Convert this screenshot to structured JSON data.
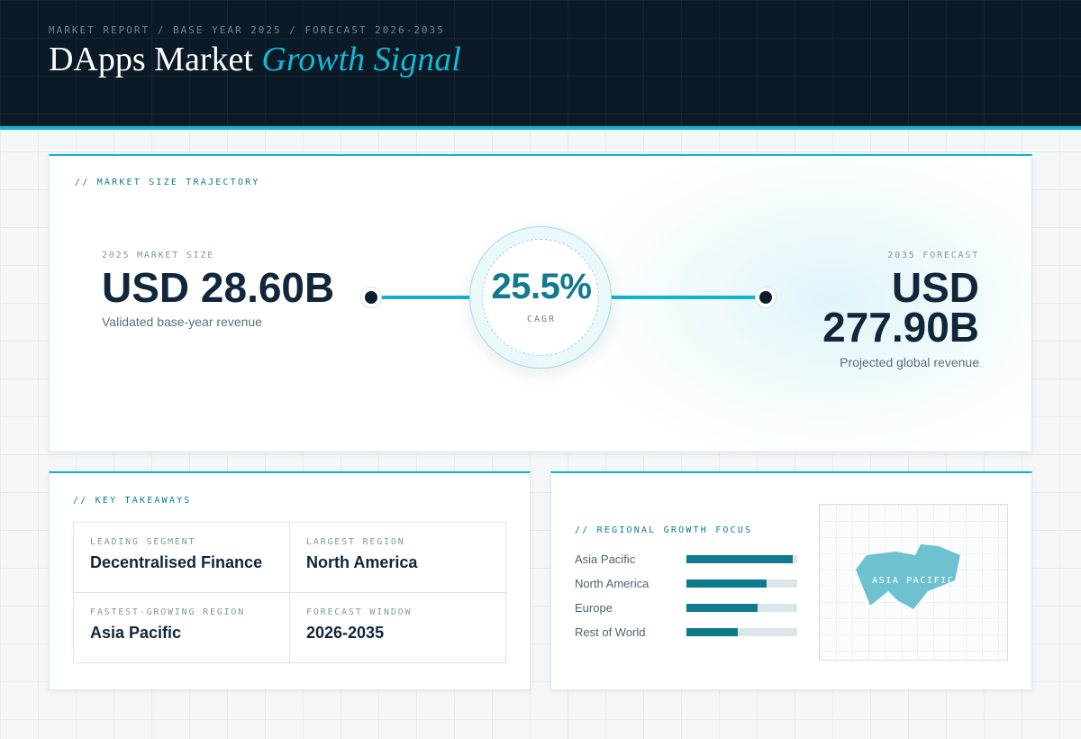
{
  "header": {
    "eyebrow": "MARKET REPORT / BASE YEAR 2025 / FORECAST 2026-2035",
    "title_main": "DApps Market",
    "title_accent": "Growth Signal"
  },
  "trajectory": {
    "section_label": "// MARKET SIZE TRAJECTORY",
    "base": {
      "label": "2025 MARKET SIZE",
      "value": "USD 28.60B",
      "caption": "Validated base-year revenue"
    },
    "cagr": {
      "value": "25.5%",
      "label": "CAGR"
    },
    "forecast": {
      "label": "2035 FORECAST",
      "value_line1": "USD",
      "value_line2": "277.90B",
      "caption": "Projected global revenue"
    }
  },
  "takeaways": {
    "section_label": "// KEY TAKEAWAYS",
    "items": [
      {
        "label": "LEADING SEGMENT",
        "value": "Decentralised Finance"
      },
      {
        "label": "LARGEST REGION",
        "value": "North America"
      },
      {
        "label": "FASTEST-GROWING REGION",
        "value": "Asia Pacific"
      },
      {
        "label": "FORECAST WINDOW",
        "value": "2026-2035"
      }
    ]
  },
  "regional": {
    "section_label": "// REGIONAL GROWTH FOCUS",
    "bars": [
      {
        "name": "Asia Pacific",
        "fraction": 0.96
      },
      {
        "name": "North America",
        "fraction": 0.72
      },
      {
        "name": "Europe",
        "fraction": 0.64
      },
      {
        "name": "Rest of World",
        "fraction": 0.46
      }
    ],
    "map_label": "ASIA PACIFIC"
  },
  "colors": {
    "accent": "#13b3cf",
    "accent_dark": "#0f7a8c",
    "header_bg": "#0b1a27",
    "ink": "#10263a"
  }
}
